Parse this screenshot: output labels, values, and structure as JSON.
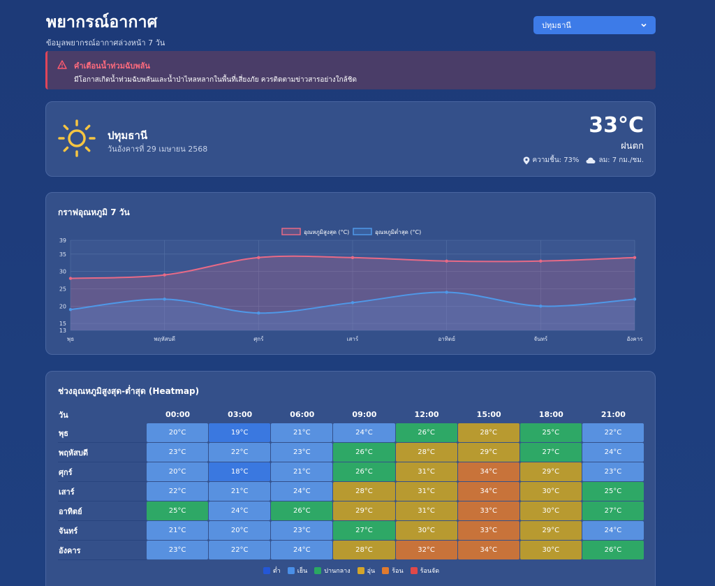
{
  "header": {
    "title": "พยากรณ์อากาศ",
    "subtitle": "ข้อมูลพยากรณ์อากาศล่วงหน้า 7 วัน"
  },
  "province_select": {
    "selected": "ปทุมธานี"
  },
  "alert": {
    "title": "คำเตือนน้ำท่วมฉับพลัน",
    "text": "มีโอกาสเกิดน้ำท่วมฉับพลันและน้ำป่าไหลหลากในพื้นที่เสี่ยงภัย ควรติดตามข่าวสารอย่างใกล้ชิด"
  },
  "current": {
    "city": "ปทุมธานี",
    "date": "วันอังคารที่ 29 เมษายน 2568",
    "temp": "33°C",
    "condition": "ฝนตก",
    "humidity": "ความชื้น: 73%",
    "wind": "ลม: 7 กม./ชม."
  },
  "chart_section": {
    "title": "กราฟอุณหภูมิ 7 วัน"
  },
  "chart_data": {
    "type": "line",
    "categories": [
      "พุธ",
      "พฤหัสบดี",
      "ศุกร์",
      "เสาร์",
      "อาทิตย์",
      "จันทร์",
      "อังคาร"
    ],
    "series": [
      {
        "name": "อุณหภูมิสูงสุด (°C)",
        "values": [
          28,
          29,
          34,
          34,
          33,
          33,
          34
        ],
        "color": "#e86a86"
      },
      {
        "name": "อุณหภูมิต่ำสุด (°C)",
        "values": [
          19,
          22,
          18,
          21,
          24,
          20,
          22
        ],
        "color": "#4f98e8"
      }
    ],
    "yticks": [
      13,
      15,
      20,
      25,
      30,
      35,
      39
    ],
    "ylim": [
      13,
      39
    ],
    "legend": "top-center",
    "grid": true
  },
  "heatmap": {
    "title": "ช่วงอุณหภูมิสูงสุด-ต่ำสุด (Heatmap)",
    "day_header": "วัน",
    "times": [
      "00:00",
      "03:00",
      "06:00",
      "09:00",
      "12:00",
      "15:00",
      "18:00",
      "21:00"
    ],
    "rows": [
      {
        "day": "พุธ",
        "values": [
          20,
          19,
          21,
          24,
          26,
          28,
          25,
          22
        ]
      },
      {
        "day": "พฤหัสบดี",
        "values": [
          23,
          22,
          23,
          26,
          28,
          29,
          27,
          24
        ]
      },
      {
        "day": "ศุกร์",
        "values": [
          20,
          18,
          21,
          26,
          31,
          34,
          29,
          23
        ]
      },
      {
        "day": "เสาร์",
        "values": [
          22,
          21,
          24,
          28,
          31,
          34,
          30,
          25
        ]
      },
      {
        "day": "อาทิตย์",
        "values": [
          25,
          24,
          26,
          29,
          31,
          33,
          30,
          27
        ]
      },
      {
        "day": "จันทร์",
        "values": [
          21,
          20,
          23,
          27,
          30,
          33,
          29,
          24
        ]
      },
      {
        "day": "อังคาร",
        "values": [
          23,
          22,
          24,
          28,
          32,
          34,
          30,
          26
        ]
      }
    ],
    "unit": "°C",
    "legend": [
      {
        "label": "ต่ำ",
        "color": "#2457d6"
      },
      {
        "label": "เย็น",
        "color": "#4a8fe8"
      },
      {
        "label": "ปานกลาง",
        "color": "#2aa862"
      },
      {
        "label": "อุ่น",
        "color": "#d4a52a"
      },
      {
        "label": "ร้อน",
        "color": "#e07a2e"
      },
      {
        "label": "ร้อนจัด",
        "color": "#e04848"
      }
    ],
    "cell_colors": {
      "cold": "#3a78e0",
      "cool": "#5891e0",
      "moderate": "#2ea866",
      "warm": "#b89a30",
      "hot": "#c8733a"
    }
  }
}
